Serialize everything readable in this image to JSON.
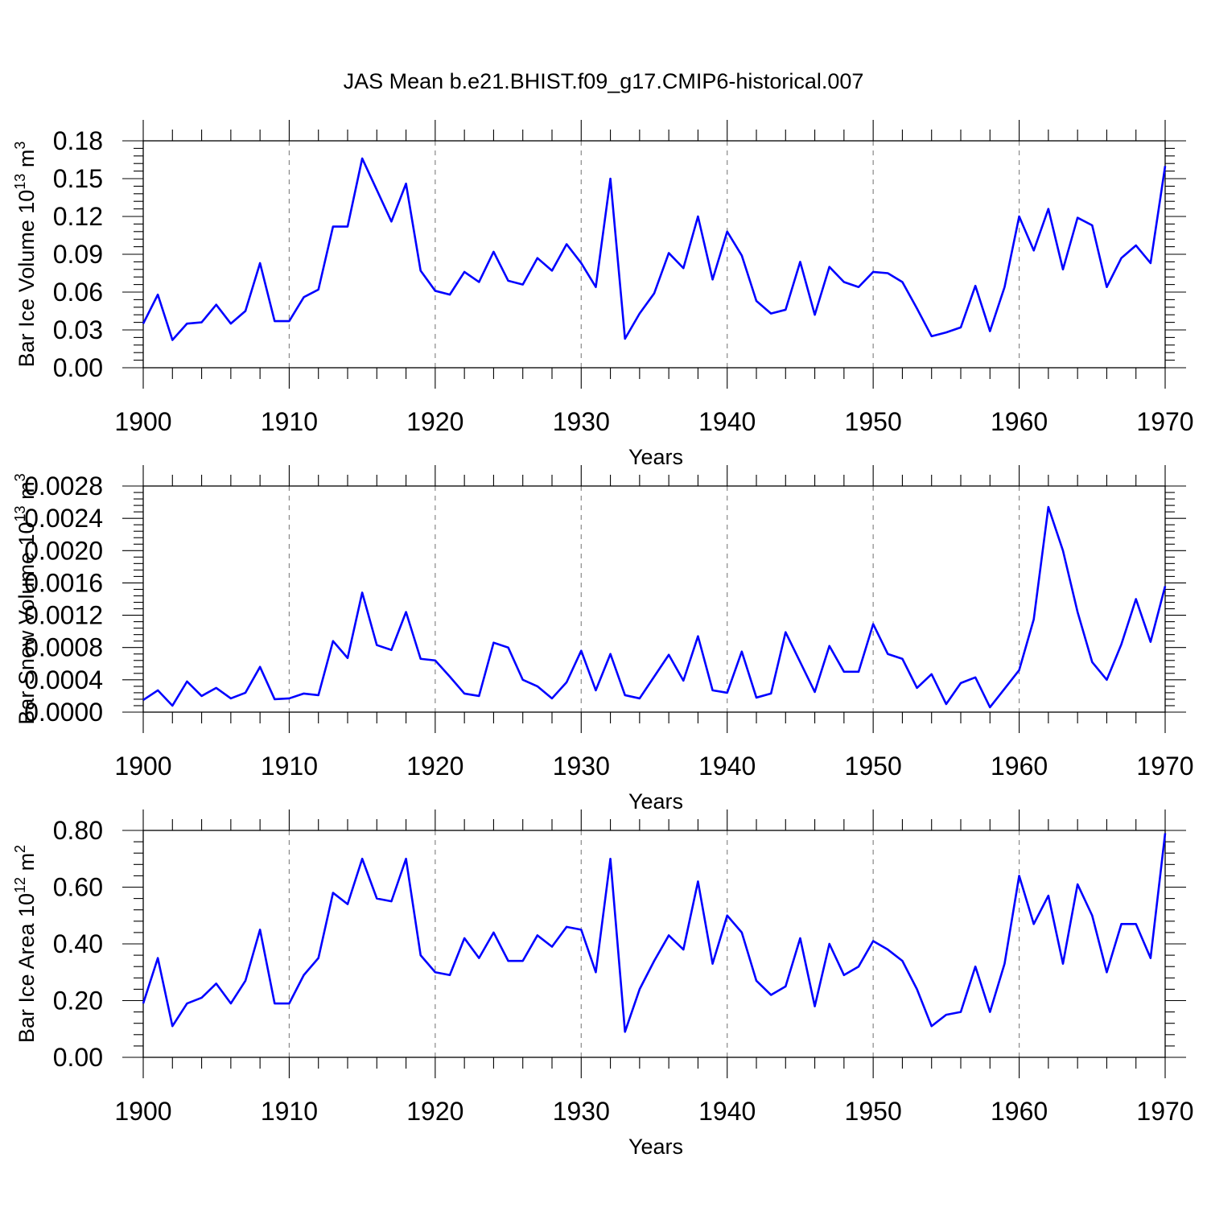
{
  "figure_title": "JAS Mean b.e21.BHIST.f09_g17.CMIP6-historical.007",
  "colors": {
    "line": "#0000ff",
    "axis": "#000000",
    "grid": "#888888"
  },
  "chart_data": [
    {
      "type": "line",
      "title": "JAS Mean b.e21.BHIST.f09_g17.CMIP6-historical.007",
      "xlabel": "Years",
      "ylabel": "Bar Ice Volume 10",
      "ylabel_exp1": "13",
      "ylabel_mid": " m",
      "ylabel_exp2": "3",
      "xlim": [
        1900,
        1970
      ],
      "ylim": [
        0,
        0.18
      ],
      "xticks": [
        1900,
        1910,
        1920,
        1930,
        1940,
        1950,
        1960,
        1970
      ],
      "yticks": [
        0,
        0.03,
        0.06,
        0.09,
        0.12,
        0.15,
        0.18
      ],
      "ytick_labels": [
        "0.00",
        "0.03",
        "0.06",
        "0.09",
        "0.12",
        "0.15",
        "0.18"
      ],
      "series": [
        {
          "name": "Bar Ice Volume",
          "x": [
            1900,
            1901,
            1902,
            1903,
            1904,
            1905,
            1906,
            1907,
            1908,
            1909,
            1910,
            1911,
            1912,
            1913,
            1914,
            1915,
            1916,
            1917,
            1918,
            1919,
            1920,
            1921,
            1922,
            1923,
            1924,
            1925,
            1926,
            1927,
            1928,
            1929,
            1930,
            1931,
            1932,
            1933,
            1934,
            1935,
            1936,
            1937,
            1938,
            1939,
            1940,
            1941,
            1942,
            1943,
            1944,
            1945,
            1946,
            1947,
            1948,
            1949,
            1950,
            1951,
            1952,
            1953,
            1954,
            1955,
            1956,
            1957,
            1958,
            1959,
            1960,
            1961,
            1962,
            1963,
            1964,
            1965,
            1966,
            1967,
            1968,
            1969,
            1970
          ],
          "values": [
            0.035,
            0.058,
            0.022,
            0.035,
            0.036,
            0.05,
            0.035,
            0.045,
            0.083,
            0.037,
            0.037,
            0.056,
            0.062,
            0.112,
            0.112,
            0.166,
            0.141,
            0.116,
            0.146,
            0.077,
            0.061,
            0.058,
            0.076,
            0.068,
            0.092,
            0.069,
            0.066,
            0.087,
            0.077,
            0.098,
            0.083,
            0.064,
            0.15,
            0.023,
            0.043,
            0.059,
            0.091,
            0.079,
            0.12,
            0.07,
            0.108,
            0.089,
            0.053,
            0.043,
            0.046,
            0.084,
            0.042,
            0.08,
            0.068,
            0.064,
            0.076,
            0.075,
            0.068,
            0.047,
            0.025,
            0.028,
            0.032,
            0.065,
            0.029,
            0.064,
            0.12,
            0.093,
            0.126,
            0.078,
            0.119,
            0.113,
            0.064,
            0.087,
            0.097,
            0.083,
            0.16
          ]
        }
      ]
    },
    {
      "type": "line",
      "xlabel": "Years",
      "ylabel": "Bar Snow Volume 10",
      "ylabel_exp1": "13",
      "ylabel_mid": " m",
      "ylabel_exp2": "3",
      "xlim": [
        1900,
        1970
      ],
      "ylim": [
        0,
        0.0028
      ],
      "xticks": [
        1900,
        1910,
        1920,
        1930,
        1940,
        1950,
        1960,
        1970
      ],
      "yticks": [
        0,
        0.0004,
        0.0008,
        0.0012,
        0.0016,
        0.002,
        0.0024,
        0.0028
      ],
      "ytick_labels": [
        "0.0000",
        "0.0004",
        "0.0008",
        "0.0012",
        "0.0016",
        "0.0020",
        "0.0024",
        "0.0028"
      ],
      "series": [
        {
          "name": "Bar Snow Volume",
          "x": [
            1900,
            1901,
            1902,
            1903,
            1904,
            1905,
            1906,
            1907,
            1908,
            1909,
            1910,
            1911,
            1912,
            1913,
            1914,
            1915,
            1916,
            1917,
            1918,
            1919,
            1920,
            1921,
            1922,
            1923,
            1924,
            1925,
            1926,
            1927,
            1928,
            1929,
            1930,
            1931,
            1932,
            1933,
            1934,
            1935,
            1936,
            1937,
            1938,
            1939,
            1940,
            1941,
            1942,
            1943,
            1944,
            1945,
            1946,
            1947,
            1948,
            1949,
            1950,
            1951,
            1952,
            1953,
            1954,
            1955,
            1956,
            1957,
            1958,
            1959,
            1960,
            1961,
            1962,
            1963,
            1964,
            1965,
            1966,
            1967,
            1968,
            1969,
            1970
          ],
          "values": [
            0.00015,
            0.00027,
            8e-05,
            0.00038,
            0.0002,
            0.0003,
            0.00017,
            0.00024,
            0.00056,
            0.00016,
            0.00017,
            0.00023,
            0.00021,
            0.00088,
            0.00067,
            0.00148,
            0.00083,
            0.00077,
            0.00124,
            0.00066,
            0.00064,
            0.00044,
            0.00023,
            0.0002,
            0.00086,
            0.0008,
            0.0004,
            0.00032,
            0.00017,
            0.00037,
            0.00076,
            0.00027,
            0.00072,
            0.00021,
            0.00017,
            0.00044,
            0.00071,
            0.00039,
            0.00094,
            0.00027,
            0.00024,
            0.00075,
            0.00018,
            0.00023,
            0.00099,
            0.00062,
            0.00025,
            0.00082,
            0.0005,
            0.0005,
            0.00109,
            0.00072,
            0.00066,
            0.0003,
            0.00047,
            0.0001,
            0.00036,
            0.00043,
            6e-05,
            0.00029,
            0.00052,
            0.00115,
            0.00254,
            0.002,
            0.00124,
            0.00062,
            0.0004,
            0.00084,
            0.0014,
            0.00087,
            0.00156
          ]
        }
      ]
    },
    {
      "type": "line",
      "xlabel": "Years",
      "ylabel": "Bar Ice Area 10",
      "ylabel_exp1": "12",
      "ylabel_mid": " m",
      "ylabel_exp2": "2",
      "xlim": [
        1900,
        1970
      ],
      "ylim": [
        0,
        0.8
      ],
      "xticks": [
        1900,
        1910,
        1920,
        1930,
        1940,
        1950,
        1960,
        1970
      ],
      "yticks": [
        0,
        0.2,
        0.4,
        0.6,
        0.8
      ],
      "ytick_labels": [
        "0.00",
        "0.20",
        "0.40",
        "0.60",
        "0.80"
      ],
      "series": [
        {
          "name": "Bar Ice Area",
          "x": [
            1900,
            1901,
            1902,
            1903,
            1904,
            1905,
            1906,
            1907,
            1908,
            1909,
            1910,
            1911,
            1912,
            1913,
            1914,
            1915,
            1916,
            1917,
            1918,
            1919,
            1920,
            1921,
            1922,
            1923,
            1924,
            1925,
            1926,
            1927,
            1928,
            1929,
            1930,
            1931,
            1932,
            1933,
            1934,
            1935,
            1936,
            1937,
            1938,
            1939,
            1940,
            1941,
            1942,
            1943,
            1944,
            1945,
            1946,
            1947,
            1948,
            1949,
            1950,
            1951,
            1952,
            1953,
            1954,
            1955,
            1956,
            1957,
            1958,
            1959,
            1960,
            1961,
            1962,
            1963,
            1964,
            1965,
            1966,
            1967,
            1968,
            1969,
            1970
          ],
          "values": [
            0.19,
            0.35,
            0.11,
            0.19,
            0.21,
            0.26,
            0.19,
            0.27,
            0.45,
            0.19,
            0.19,
            0.29,
            0.35,
            0.58,
            0.54,
            0.7,
            0.56,
            0.55,
            0.7,
            0.36,
            0.3,
            0.29,
            0.42,
            0.35,
            0.44,
            0.34,
            0.34,
            0.43,
            0.39,
            0.46,
            0.45,
            0.3,
            0.7,
            0.09,
            0.24,
            0.34,
            0.43,
            0.38,
            0.62,
            0.33,
            0.5,
            0.44,
            0.27,
            0.22,
            0.25,
            0.42,
            0.18,
            0.4,
            0.29,
            0.32,
            0.41,
            0.38,
            0.34,
            0.24,
            0.11,
            0.15,
            0.16,
            0.32,
            0.16,
            0.33,
            0.64,
            0.47,
            0.57,
            0.33,
            0.61,
            0.5,
            0.3,
            0.47,
            0.47,
            0.35,
            0.79
          ]
        }
      ]
    }
  ]
}
